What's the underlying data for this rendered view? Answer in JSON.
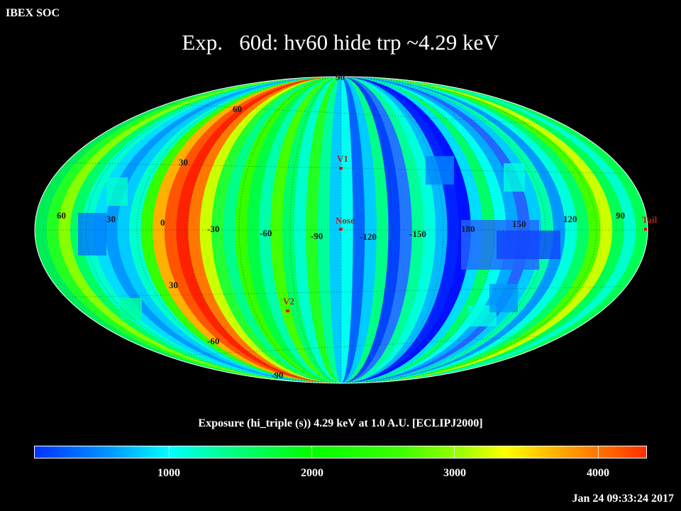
{
  "header": {
    "soc_label": "IBEX SOC",
    "title": "Exp.   60d: hv60 hide trp ~4.29 keV"
  },
  "map": {
    "projection": "Mollweide",
    "frame": "ECLIPJ2000",
    "lat_labels": [
      "60",
      "30",
      "30",
      "-60",
      "90",
      "-90"
    ],
    "lon_labels": [
      "60",
      "30",
      "0",
      "-30",
      "-60",
      "-90",
      "-120",
      "-150",
      "180",
      "150",
      "120",
      "90"
    ],
    "markers": [
      {
        "id": "v1",
        "label": "V1"
      },
      {
        "id": "nose",
        "label": "Nose"
      },
      {
        "id": "v2",
        "label": "V2"
      },
      {
        "id": "tail",
        "label": "Tail"
      }
    ],
    "marker_color": "#dd1111",
    "label_color": "#b02020"
  },
  "colorbar": {
    "title": "Exposure (hi_triple (s))  4.29 keV at 1.0 A.U. [ECLIPJ2000]",
    "ticks": [
      "1000",
      "2000",
      "3000",
      "4000"
    ],
    "range": [
      0,
      4300
    ],
    "colors": [
      "#0032ff",
      "#0095ff",
      "#00ffff",
      "#00ff00",
      "#ffff00",
      "#ff3000"
    ]
  },
  "footer": {
    "timestamp": "Jan 24 09:33:24 2017"
  }
}
